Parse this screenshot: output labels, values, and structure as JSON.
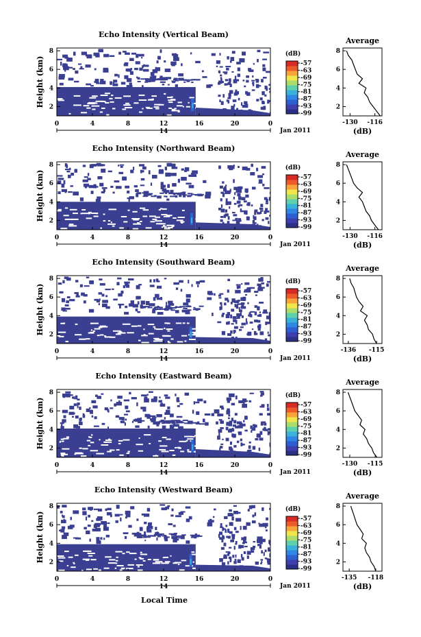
{
  "figure": {
    "bottom_xlabel": "Local Time",
    "date_label": "Jan 2011",
    "day_label": "14",
    "cbar_unit": "(dB)",
    "avg_title": "Average",
    "avg_xlabel": "(dB)"
  },
  "colors": {
    "echo_main": "#3a3f91",
    "colormap": [
      "#2b2f86",
      "#3d3fae",
      "#2e5fd2",
      "#2f86e4",
      "#39b1d9",
      "#5fd0ad",
      "#a9de6a",
      "#f2e64a",
      "#f7a43a",
      "#ef5a2b",
      "#d92b26"
    ]
  },
  "chart_data": [
    {
      "type": "heatmap",
      "title": "Echo Intensity (Vertical Beam)",
      "ylabel": "Height (km)",
      "xlabel": "Local Time",
      "x_ticks": [
        "0",
        "4",
        "8",
        "12",
        "16",
        "20",
        "0"
      ],
      "y_ticks": [
        "2",
        "4",
        "6",
        "8"
      ],
      "xlim_hours": [
        0,
        24
      ],
      "ylim_km": [
        1,
        8.3
      ],
      "colorbar": {
        "unit": "(dB)",
        "ticks": [
          "-57",
          "-63",
          "-69",
          "-75",
          "-81",
          "-87",
          "-93",
          "-99"
        ]
      },
      "regions": [
        {
          "desc": "continuous low-level echo",
          "t": [
            0,
            15.6
          ],
          "h_top": 4.1,
          "db": -97
        },
        {
          "desc": "stronger core",
          "t": [
            15.1,
            15.4
          ],
          "h_range": [
            1.5,
            2.9
          ],
          "db": -93
        }
      ],
      "average_profile": {
        "title": "Average",
        "xlabel": "(dB)",
        "x_ticks": [
          "-130",
          "-116"
        ],
        "y_ticks": [
          "2",
          "4",
          "6",
          "8"
        ],
        "height_km": [
          1.0,
          1.5,
          2.0,
          2.5,
          3.0,
          3.5,
          4.0,
          4.5,
          5.0,
          5.5,
          6.0,
          6.5,
          7.0,
          7.5,
          8.0
        ],
        "db": [
          -113,
          -115,
          -117,
          -119,
          -120,
          -122,
          -121,
          -125,
          -123,
          -126,
          -127,
          -128,
          -129,
          -131,
          -132
        ]
      }
    },
    {
      "type": "heatmap",
      "title": "Echo Intensity (Northward Beam)",
      "ylabel": "Height (km)",
      "xlabel": "Local Time",
      "x_ticks": [
        "0",
        "4",
        "8",
        "12",
        "16",
        "20",
        "0"
      ],
      "y_ticks": [
        "2",
        "4",
        "6",
        "8"
      ],
      "xlim_hours": [
        0,
        24
      ],
      "ylim_km": [
        1,
        8.3
      ],
      "colorbar": {
        "unit": "(dB)",
        "ticks": [
          "-57",
          "-63",
          "-69",
          "-75",
          "-81",
          "-87",
          "-93",
          "-99"
        ]
      },
      "regions": [
        {
          "desc": "continuous low-level echo",
          "t": [
            0,
            15.6
          ],
          "h_top": 4.0,
          "db": -97
        },
        {
          "desc": "stronger core",
          "t": [
            15.0,
            15.3
          ],
          "h_range": [
            1.5,
            2.8
          ],
          "db": -93
        }
      ],
      "average_profile": {
        "title": "Average",
        "xlabel": "(dB)",
        "x_ticks": [
          "-130",
          "-116"
        ],
        "y_ticks": [
          "2",
          "4",
          "6",
          "8"
        ],
        "height_km": [
          1.0,
          1.5,
          2.0,
          2.5,
          3.0,
          3.5,
          4.0,
          4.5,
          5.0,
          5.5,
          6.0,
          6.5,
          7.0,
          7.5,
          8.0
        ],
        "db": [
          -114,
          -116,
          -118,
          -119,
          -121,
          -122,
          -123,
          -125,
          -123,
          -126,
          -128,
          -129,
          -130,
          -131,
          -132
        ]
      }
    },
    {
      "type": "heatmap",
      "title": "Echo Intensity (Southward Beam)",
      "ylabel": "Height (km)",
      "xlabel": "Local Time",
      "x_ticks": [
        "0",
        "4",
        "8",
        "12",
        "16",
        "20",
        "0"
      ],
      "y_ticks": [
        "2",
        "4",
        "6",
        "8"
      ],
      "xlim_hours": [
        0,
        24
      ],
      "ylim_km": [
        1,
        8.3
      ],
      "colorbar": {
        "unit": "(dB)",
        "ticks": [
          "-57",
          "-63",
          "-69",
          "-75",
          "-81",
          "-87",
          "-93",
          "-99"
        ]
      },
      "regions": [
        {
          "desc": "continuous low-level echo",
          "t": [
            0,
            15.6
          ],
          "h_top": 3.9,
          "db": -97
        },
        {
          "desc": "stronger core",
          "t": [
            14.9,
            15.2
          ],
          "h_range": [
            1.5,
            2.8
          ],
          "db": -93
        }
      ],
      "average_profile": {
        "title": "Average",
        "xlabel": "(dB)",
        "x_ticks": [
          "-136",
          "-115"
        ],
        "y_ticks": [
          "2",
          "4",
          "6",
          "8"
        ],
        "height_km": [
          1.0,
          1.5,
          2.0,
          2.5,
          3.0,
          3.5,
          4.0,
          4.5,
          5.0,
          5.5,
          6.0,
          6.5,
          7.0,
          7.5,
          8.0
        ],
        "db": [
          -115,
          -117,
          -118,
          -121,
          -122,
          -124,
          -122,
          -127,
          -125,
          -128,
          -130,
          -131,
          -132,
          -134,
          -135
        ]
      }
    },
    {
      "type": "heatmap",
      "title": "Echo Intensity (Eastward Beam)",
      "ylabel": "Height (km)",
      "xlabel": "Local Time",
      "x_ticks": [
        "0",
        "4",
        "8",
        "12",
        "16",
        "20",
        "0"
      ],
      "y_ticks": [
        "2",
        "4",
        "6",
        "8"
      ],
      "xlim_hours": [
        0,
        24
      ],
      "ylim_km": [
        1,
        8.3
      ],
      "colorbar": {
        "unit": "(dB)",
        "ticks": [
          "-57",
          "-63",
          "-69",
          "-75",
          "-81",
          "-87",
          "-93",
          "-99"
        ]
      },
      "regions": [
        {
          "desc": "continuous low-level echo",
          "t": [
            0,
            15.6
          ],
          "h_top": 4.1,
          "db": -97
        },
        {
          "desc": "stronger core",
          "t": [
            15.1,
            15.4
          ],
          "h_range": [
            1.5,
            2.9
          ],
          "db": -93
        }
      ],
      "average_profile": {
        "title": "Average",
        "xlabel": "(dB)",
        "x_ticks": [
          "-130",
          "-115"
        ],
        "y_ticks": [
          "2",
          "4",
          "6",
          "8"
        ],
        "height_km": [
          1.0,
          1.5,
          2.0,
          2.5,
          3.0,
          3.5,
          4.0,
          4.5,
          5.0,
          5.5,
          6.0,
          6.5,
          7.0,
          7.5,
          8.0
        ],
        "db": [
          -114,
          -116,
          -117,
          -119,
          -120,
          -122,
          -121,
          -124,
          -123,
          -125,
          -127,
          -128,
          -129,
          -130,
          -131
        ]
      }
    },
    {
      "type": "heatmap",
      "title": "Echo Intensity (Westward Beam)",
      "ylabel": "Height (km)",
      "xlabel": "Local Time",
      "x_ticks": [
        "0",
        "4",
        "8",
        "12",
        "16",
        "20",
        "0"
      ],
      "y_ticks": [
        "2",
        "4",
        "6",
        "8"
      ],
      "xlim_hours": [
        0,
        24
      ],
      "ylim_km": [
        1,
        8.3
      ],
      "colorbar": {
        "unit": "(dB)",
        "ticks": [
          "-57",
          "-63",
          "-69",
          "-75",
          "-81",
          "-87",
          "-93",
          "-99"
        ]
      },
      "regions": [
        {
          "desc": "continuous low-level echo",
          "t": [
            0,
            15.6
          ],
          "h_top": 3.9,
          "db": -97
        },
        {
          "desc": "stronger core",
          "t": [
            14.9,
            15.2
          ],
          "h_range": [
            1.5,
            2.8
          ],
          "db": -93
        }
      ],
      "average_profile": {
        "title": "Average",
        "xlabel": "(dB)",
        "x_ticks": [
          "-135",
          "-118"
        ],
        "y_ticks": [
          "2",
          "4",
          "6",
          "8"
        ],
        "height_km": [
          1.0,
          1.5,
          2.0,
          2.5,
          3.0,
          3.5,
          4.0,
          4.5,
          5.0,
          5.5,
          6.0,
          6.5,
          7.0,
          7.5,
          8.0
        ],
        "db": [
          -118,
          -119,
          -121,
          -122,
          -124,
          -125,
          -124,
          -127,
          -126,
          -128,
          -130,
          -131,
          -132,
          -133,
          -134
        ]
      }
    }
  ]
}
